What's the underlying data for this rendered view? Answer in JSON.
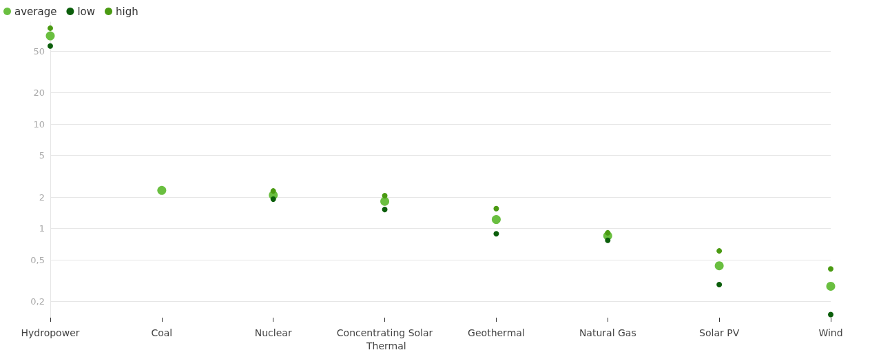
{
  "chart_data": {
    "type": "scatter",
    "categories": [
      "Hydropower",
      "Coal",
      "Nuclear",
      "Concentrating Solar Thermal",
      "Geothermal",
      "Natural Gas",
      "Solar PV",
      "Wind"
    ],
    "series": [
      {
        "name": "average",
        "color": "#6abf40",
        "values": [
          70,
          2.32,
          2.09,
          1.82,
          1.22,
          0.85,
          0.44,
          0.28
        ]
      },
      {
        "name": "low",
        "color": "#0b5e0b",
        "values": [
          56,
          null,
          1.91,
          1.52,
          0.89,
          0.77,
          0.29,
          0.15
        ]
      },
      {
        "name": "high",
        "color": "#4a9a12",
        "values": [
          83,
          null,
          2.29,
          2.06,
          1.55,
          0.91,
          0.61,
          0.41
        ]
      }
    ],
    "log": "y",
    "ylim": [
      0.14,
      95
    ],
    "yticks": [
      {
        "value": 0.2,
        "label": "0,2"
      },
      {
        "value": 0.5,
        "label": "0,5"
      },
      1,
      2,
      5,
      10,
      20,
      50
    ],
    "grid": "y",
    "legend": "top left",
    "marker": "circle"
  }
}
